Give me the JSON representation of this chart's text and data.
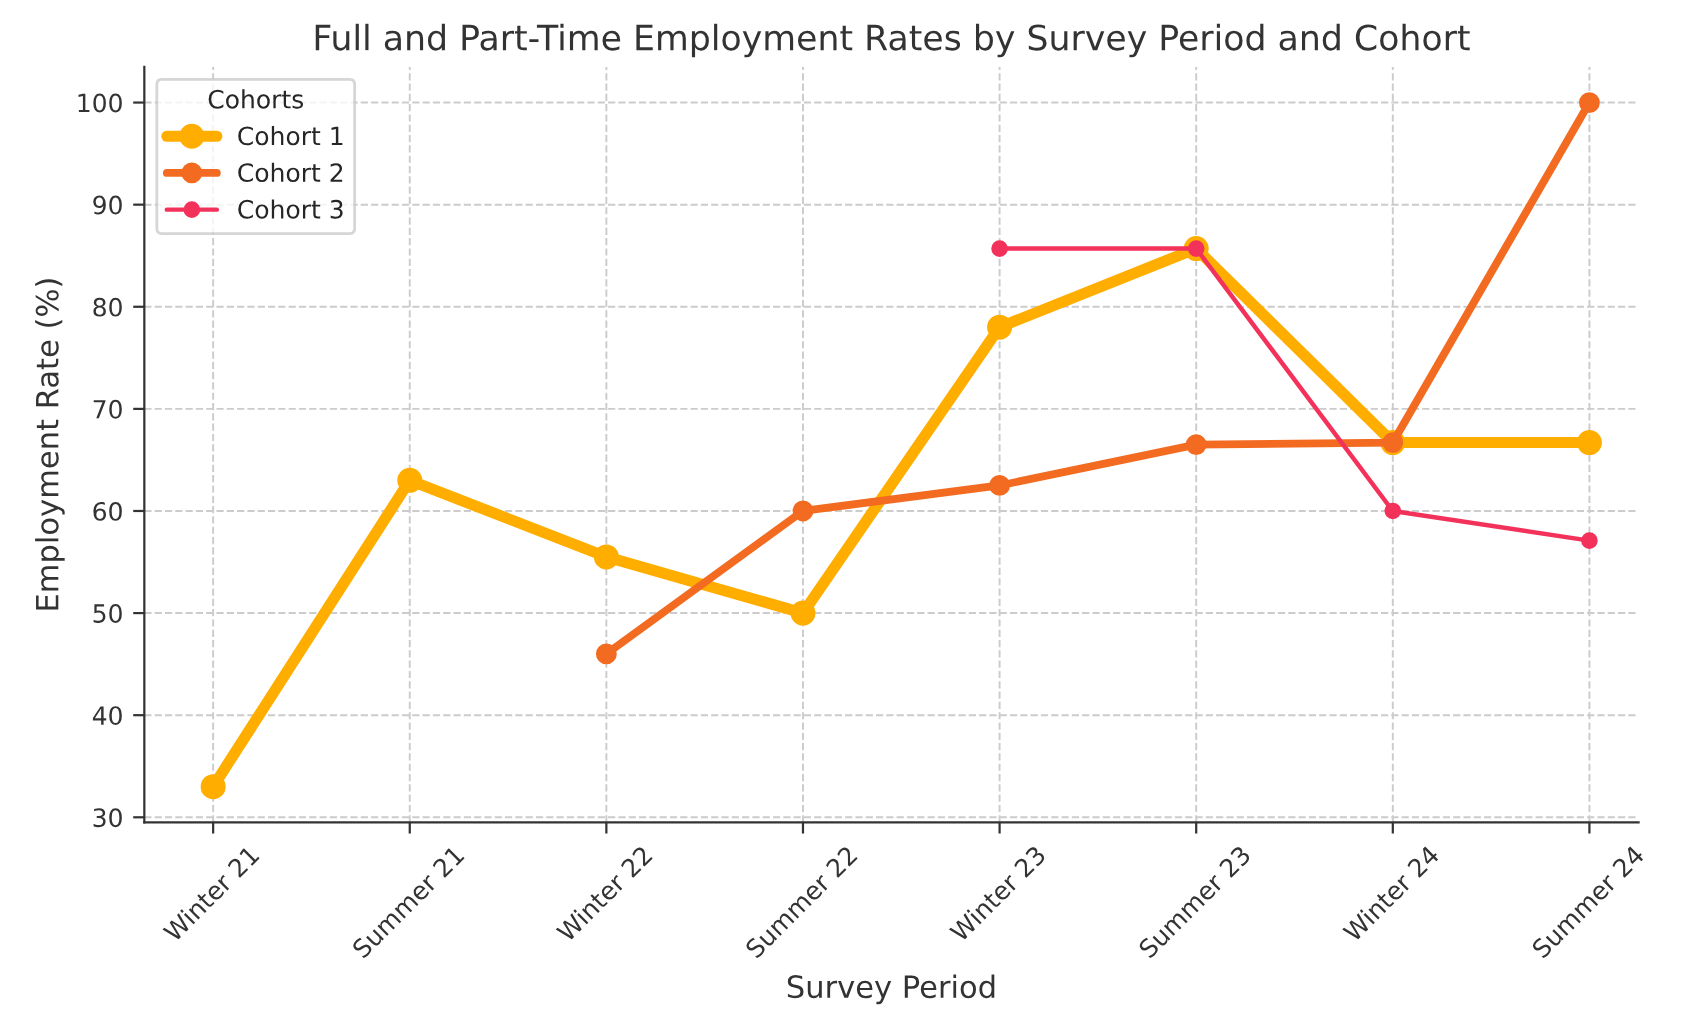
{
  "chart_data": {
    "type": "line",
    "title": "Full and Part-Time Employment Rates by Survey Period and Cohort",
    "xlabel": "Survey Period",
    "ylabel": "Employment Rate (%)",
    "legend_title": "Cohorts",
    "categories": [
      "Winter 21",
      "Summer 21",
      "Winter 22",
      "Summer 22",
      "Winter 23",
      "Summer 23",
      "Winter 24",
      "Summer 24"
    ],
    "series": [
      {
        "name": "Cohort 1",
        "color": "#ffae00",
        "values": [
          33,
          63,
          55.5,
          50,
          78,
          85.7,
          66.7,
          66.7
        ]
      },
      {
        "name": "Cohort 2",
        "color": "#f26b21",
        "values": [
          null,
          null,
          46,
          60,
          62.5,
          66.5,
          66.7,
          100
        ]
      },
      {
        "name": "Cohort 3",
        "color": "#f2325a",
        "values": [
          null,
          null,
          null,
          null,
          85.7,
          85.7,
          60,
          57.1
        ]
      }
    ],
    "ylim": [
      29.5,
      103.5
    ],
    "yticks": [
      30,
      40,
      50,
      60,
      70,
      80,
      90,
      100
    ],
    "grid": true,
    "legend": "top left",
    "marker": "circle",
    "line_style": "solid"
  }
}
